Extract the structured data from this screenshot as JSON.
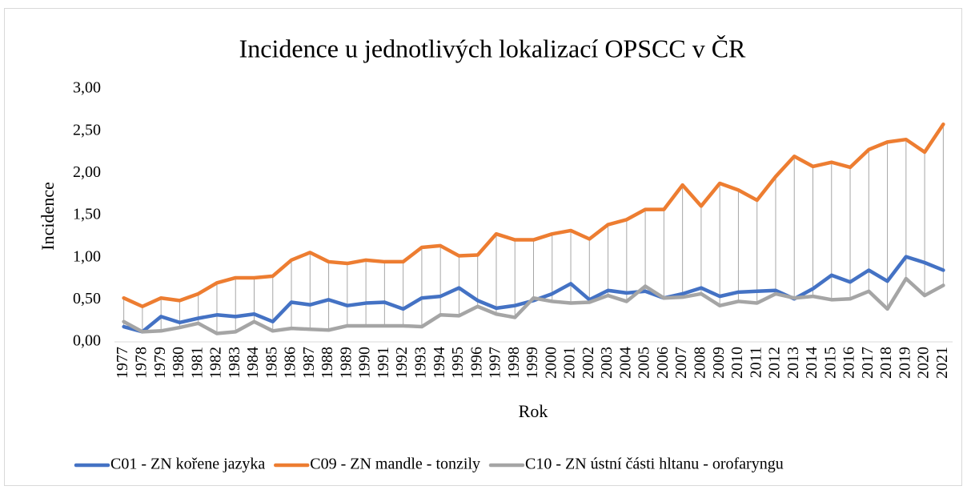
{
  "chart_data": {
    "type": "line",
    "title": "Incidence u jednotlivých lokalizací OPSCC v ČR",
    "x_label": "Rok",
    "y_label": "Incidence",
    "categories": [
      "1977",
      "1978",
      "1979",
      "1980",
      "1981",
      "1982",
      "1983",
      "1984",
      "1985",
      "1986",
      "1987",
      "1988",
      "1989",
      "1990",
      "1991",
      "1992",
      "1993",
      "1994",
      "1995",
      "1996",
      "1997",
      "1998",
      "1999",
      "2000",
      "2001",
      "2002",
      "2003",
      "2004",
      "2005",
      "2006",
      "2007",
      "2008",
      "2009",
      "2010",
      "2011",
      "2012",
      "2013",
      "2014",
      "2015",
      "2016",
      "2017",
      "2018",
      "2019",
      "2020",
      "2021"
    ],
    "series": [
      {
        "name": "C01 - ZN kořene jazyka",
        "color": "#4472c4",
        "values": [
          0.18,
          0.12,
          0.3,
          0.23,
          0.28,
          0.32,
          0.3,
          0.33,
          0.24,
          0.47,
          0.44,
          0.5,
          0.43,
          0.46,
          0.47,
          0.39,
          0.52,
          0.54,
          0.64,
          0.49,
          0.4,
          0.43,
          0.49,
          0.57,
          0.69,
          0.5,
          0.61,
          0.58,
          0.6,
          0.52,
          0.57,
          0.64,
          0.54,
          0.59,
          0.6,
          0.61,
          0.51,
          0.63,
          0.79,
          0.71,
          0.85,
          0.72,
          1.01,
          0.94,
          0.85
        ]
      },
      {
        "name": "C09 - ZN mandle - tonzily",
        "color": "#ed7d31",
        "values": [
          0.52,
          0.42,
          0.52,
          0.49,
          0.57,
          0.7,
          0.76,
          0.76,
          0.78,
          0.97,
          1.06,
          0.95,
          0.93,
          0.97,
          0.95,
          0.95,
          1.12,
          1.14,
          1.02,
          1.03,
          1.28,
          1.21,
          1.21,
          1.28,
          1.32,
          1.22,
          1.39,
          1.45,
          1.57,
          1.57,
          1.86,
          1.61,
          1.88,
          1.8,
          1.68,
          1.96,
          2.2,
          2.08,
          2.13,
          2.07,
          2.28,
          2.37,
          2.4,
          2.25,
          2.58
        ]
      },
      {
        "name": "C10 - ZN ústní části hltanu - orofaryngu",
        "color": "#a5a5a5",
        "values": [
          0.24,
          0.12,
          0.13,
          0.17,
          0.22,
          0.1,
          0.12,
          0.24,
          0.13,
          0.16,
          0.15,
          0.14,
          0.19,
          0.19,
          0.19,
          0.19,
          0.18,
          0.32,
          0.31,
          0.42,
          0.33,
          0.29,
          0.52,
          0.48,
          0.46,
          0.47,
          0.55,
          0.48,
          0.66,
          0.52,
          0.53,
          0.57,
          0.43,
          0.48,
          0.46,
          0.57,
          0.52,
          0.54,
          0.5,
          0.51,
          0.6,
          0.39,
          0.75,
          0.55,
          0.67
        ]
      }
    ],
    "ylim": [
      0,
      3
    ],
    "yticks": [
      {
        "value": 0,
        "label": "0,00"
      },
      {
        "value": 0.5,
        "label": "0,50"
      },
      {
        "value": 1,
        "label": "1,00"
      },
      {
        "value": 1.5,
        "label": "1,50"
      },
      {
        "value": 2,
        "label": "2,00"
      },
      {
        "value": 2.5,
        "label": "2,50"
      },
      {
        "value": 3,
        "label": "3,00"
      }
    ],
    "high_low_lines": true,
    "grid": false,
    "legend": "bottom"
  }
}
